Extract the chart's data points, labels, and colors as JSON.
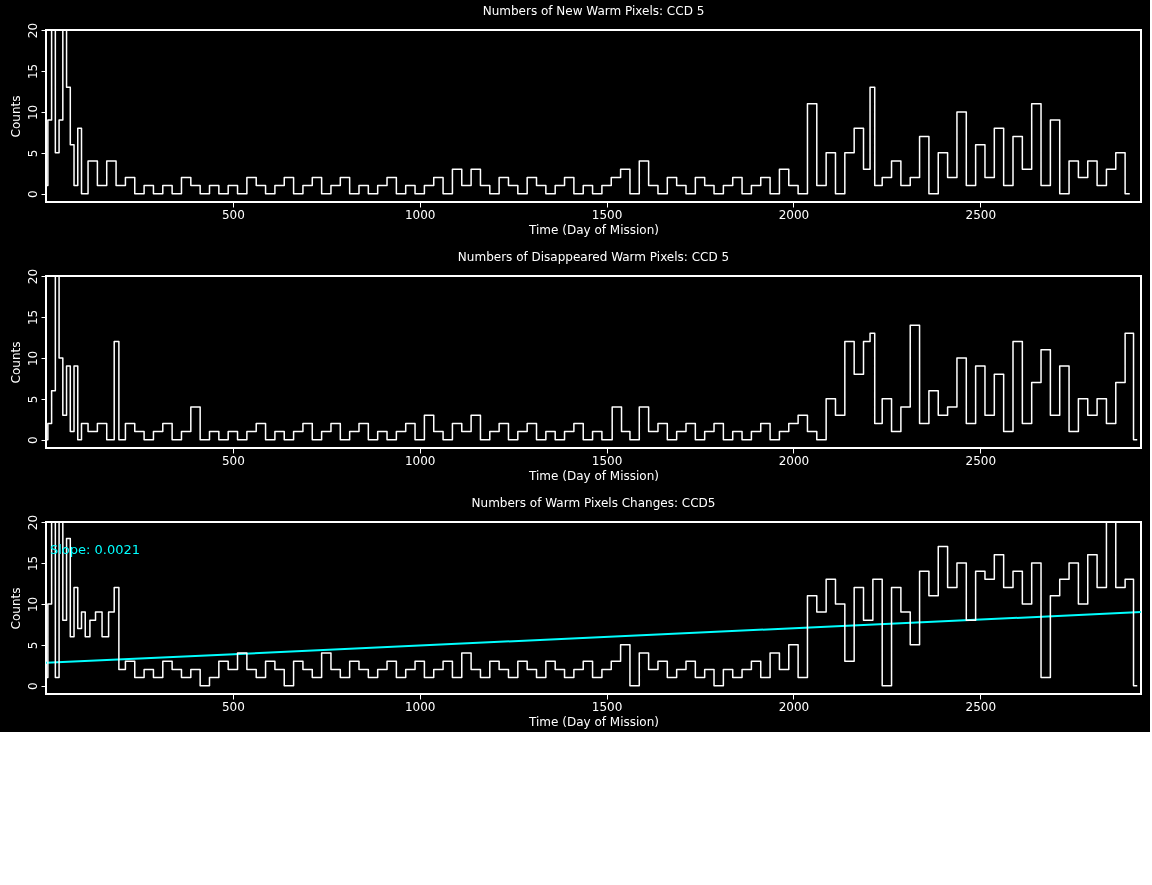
{
  "chart_data": [
    {
      "type": "step",
      "title": "Numbers of New Warm Pixels: CCD 5",
      "xlabel": "Time (Day of Mission)",
      "ylabel": "Counts",
      "xlim": [
        0,
        2930
      ],
      "ylim": [
        -1,
        20
      ],
      "xticks": [
        500,
        1000,
        1500,
        2000,
        2500
      ],
      "yticks": [
        0,
        5,
        10,
        15,
        20
      ],
      "grid": false,
      "series": [
        {
          "color": "#ffffff",
          "x": [
            0,
            10,
            20,
            30,
            40,
            50,
            60,
            70,
            80,
            90,
            100,
            125,
            150,
            175,
            200,
            225,
            250,
            275,
            300,
            325,
            350,
            375,
            400,
            425,
            450,
            475,
            500,
            525,
            550,
            575,
            600,
            625,
            650,
            675,
            700,
            725,
            750,
            775,
            800,
            825,
            850,
            875,
            900,
            925,
            950,
            975,
            1000,
            1025,
            1050,
            1075,
            1100,
            1125,
            1150,
            1175,
            1200,
            1225,
            1250,
            1275,
            1300,
            1325,
            1350,
            1375,
            1400,
            1425,
            1450,
            1475,
            1500,
            1525,
            1550,
            1575,
            1600,
            1625,
            1650,
            1675,
            1700,
            1725,
            1750,
            1775,
            1800,
            1825,
            1850,
            1875,
            1900,
            1925,
            1950,
            1975,
            2000,
            2025,
            2050,
            2075,
            2100,
            2125,
            2150,
            2175,
            2200,
            2210,
            2225,
            2250,
            2275,
            2300,
            2325,
            2350,
            2375,
            2400,
            2425,
            2450,
            2475,
            2500,
            2525,
            2550,
            2575,
            2600,
            2625,
            2650,
            2675,
            2700,
            2725,
            2750,
            2775,
            2800,
            2825,
            2850,
            2875,
            2900
          ],
          "values": [
            1,
            9,
            20,
            5,
            9,
            20,
            13,
            6,
            1,
            8,
            0,
            4,
            1,
            4,
            1,
            2,
            0,
            1,
            0,
            1,
            0,
            2,
            1,
            0,
            1,
            0,
            1,
            0,
            2,
            1,
            0,
            1,
            2,
            0,
            1,
            2,
            0,
            1,
            2,
            0,
            1,
            0,
            1,
            2,
            0,
            1,
            0,
            1,
            2,
            0,
            3,
            1,
            3,
            1,
            0,
            2,
            1,
            0,
            2,
            1,
            0,
            1,
            2,
            0,
            1,
            0,
            1,
            2,
            3,
            0,
            4,
            1,
            0,
            2,
            1,
            0,
            2,
            1,
            0,
            1,
            2,
            0,
            1,
            2,
            0,
            3,
            1,
            0,
            11,
            1,
            5,
            0,
            5,
            8,
            3,
            13,
            1,
            2,
            4,
            1,
            2,
            7,
            0,
            5,
            2,
            10,
            1,
            6,
            2,
            8,
            1,
            7,
            3,
            11,
            1,
            9,
            0,
            4,
            2,
            4,
            1,
            3,
            5,
            0
          ]
        }
      ]
    },
    {
      "type": "step",
      "title": "Numbers of Disappeared Warm Pixels: CCD 5",
      "xlabel": "Time (Day of Mission)",
      "ylabel": "Counts",
      "xlim": [
        0,
        2930
      ],
      "ylim": [
        -1,
        20
      ],
      "xticks": [
        500,
        1000,
        1500,
        2000,
        2500
      ],
      "yticks": [
        0,
        5,
        10,
        15,
        20
      ],
      "grid": false,
      "series": [
        {
          "color": "#ffffff",
          "x": [
            0,
            10,
            20,
            30,
            40,
            50,
            60,
            70,
            80,
            90,
            100,
            125,
            150,
            175,
            190,
            200,
            225,
            250,
            275,
            300,
            325,
            350,
            375,
            400,
            425,
            450,
            475,
            500,
            525,
            550,
            575,
            600,
            625,
            650,
            675,
            700,
            725,
            750,
            775,
            800,
            825,
            850,
            875,
            900,
            925,
            950,
            975,
            1000,
            1025,
            1050,
            1075,
            1100,
            1125,
            1150,
            1175,
            1200,
            1225,
            1250,
            1275,
            1300,
            1325,
            1350,
            1375,
            1400,
            1425,
            1450,
            1475,
            1500,
            1530,
            1550,
            1575,
            1600,
            1625,
            1650,
            1675,
            1700,
            1725,
            1750,
            1775,
            1800,
            1825,
            1850,
            1875,
            1900,
            1925,
            1950,
            1975,
            2000,
            2025,
            2050,
            2075,
            2100,
            2125,
            2150,
            2175,
            2200,
            2210,
            2225,
            2250,
            2275,
            2300,
            2325,
            2350,
            2375,
            2400,
            2425,
            2450,
            2475,
            2500,
            2525,
            2550,
            2575,
            2600,
            2625,
            2650,
            2675,
            2700,
            2725,
            2750,
            2775,
            2800,
            2825,
            2850,
            2875,
            2900,
            2920
          ],
          "values": [
            0,
            2,
            6,
            20,
            10,
            3,
            9,
            1,
            9,
            0,
            2,
            1,
            2,
            0,
            12,
            0,
            2,
            1,
            0,
            1,
            2,
            0,
            1,
            4,
            0,
            1,
            0,
            1,
            0,
            1,
            2,
            0,
            1,
            0,
            1,
            2,
            0,
            1,
            2,
            0,
            1,
            2,
            0,
            1,
            0,
            1,
            2,
            0,
            3,
            1,
            0,
            2,
            1,
            3,
            0,
            1,
            2,
            0,
            1,
            2,
            0,
            1,
            0,
            1,
            2,
            0,
            1,
            0,
            4,
            1,
            0,
            4,
            1,
            2,
            0,
            1,
            2,
            0,
            1,
            2,
            0,
            1,
            0,
            1,
            2,
            0,
            1,
            2,
            3,
            1,
            0,
            5,
            3,
            12,
            8,
            12,
            13,
            2,
            5,
            1,
            4,
            14,
            2,
            6,
            3,
            4,
            10,
            2,
            9,
            3,
            8,
            1,
            12,
            2,
            7,
            11,
            3,
            9,
            1,
            5,
            3,
            5,
            2,
            7,
            13,
            0
          ]
        }
      ]
    },
    {
      "type": "step",
      "title": "Numbers of Warm Pixels Changes: CCD5",
      "xlabel": "Time (Day of Mission)",
      "ylabel": "Counts",
      "xlim": [
        0,
        2930
      ],
      "ylim": [
        -1,
        20
      ],
      "xticks": [
        500,
        1000,
        1500,
        2000,
        2500
      ],
      "yticks": [
        0,
        5,
        10,
        15,
        20
      ],
      "grid": false,
      "annotations": [
        "Slope: 0.0021"
      ],
      "series": [
        {
          "color": "#ffffff",
          "x": [
            0,
            10,
            20,
            30,
            40,
            50,
            60,
            70,
            80,
            90,
            100,
            110,
            125,
            140,
            160,
            175,
            190,
            200,
            225,
            250,
            275,
            300,
            325,
            350,
            375,
            400,
            425,
            450,
            475,
            500,
            525,
            550,
            575,
            600,
            625,
            650,
            675,
            700,
            725,
            750,
            775,
            800,
            825,
            850,
            875,
            900,
            925,
            950,
            975,
            1000,
            1025,
            1050,
            1075,
            1100,
            1125,
            1150,
            1175,
            1200,
            1225,
            1250,
            1275,
            1300,
            1325,
            1350,
            1375,
            1400,
            1425,
            1450,
            1475,
            1500,
            1525,
            1550,
            1575,
            1600,
            1625,
            1650,
            1675,
            1700,
            1725,
            1750,
            1775,
            1800,
            1825,
            1850,
            1875,
            1900,
            1925,
            1950,
            1975,
            2000,
            2025,
            2050,
            2075,
            2100,
            2125,
            2150,
            2175,
            2200,
            2225,
            2250,
            2275,
            2300,
            2325,
            2350,
            2375,
            2400,
            2425,
            2450,
            2475,
            2500,
            2525,
            2550,
            2575,
            2600,
            2625,
            2650,
            2675,
            2700,
            2725,
            2750,
            2775,
            2800,
            2825,
            2850,
            2875,
            2900,
            2920
          ],
          "values": [
            1,
            10,
            20,
            1,
            20,
            8,
            18,
            6,
            12,
            7,
            9,
            6,
            8,
            9,
            6,
            9,
            12,
            2,
            3,
            1,
            2,
            1,
            3,
            2,
            1,
            2,
            0,
            1,
            3,
            2,
            4,
            2,
            1,
            3,
            2,
            0,
            3,
            2,
            1,
            4,
            2,
            1,
            3,
            2,
            1,
            2,
            3,
            1,
            2,
            3,
            1,
            2,
            3,
            1,
            4,
            2,
            1,
            3,
            2,
            1,
            3,
            2,
            1,
            3,
            2,
            1,
            2,
            3,
            1,
            2,
            3,
            5,
            0,
            4,
            2,
            3,
            1,
            2,
            3,
            1,
            2,
            0,
            2,
            1,
            2,
            3,
            1,
            4,
            2,
            5,
            1,
            11,
            9,
            13,
            10,
            3,
            12,
            8,
            13,
            0,
            12,
            9,
            5,
            14,
            11,
            17,
            12,
            15,
            8,
            14,
            13,
            16,
            12,
            14,
            10,
            15,
            1,
            11,
            13,
            15,
            10,
            16,
            12,
            20,
            12,
            13,
            0
          ]
        },
        {
          "type": "line",
          "color": "#00ffff",
          "x": [
            0,
            2930
          ],
          "values": [
            2.8,
            9.0
          ]
        }
      ]
    }
  ]
}
